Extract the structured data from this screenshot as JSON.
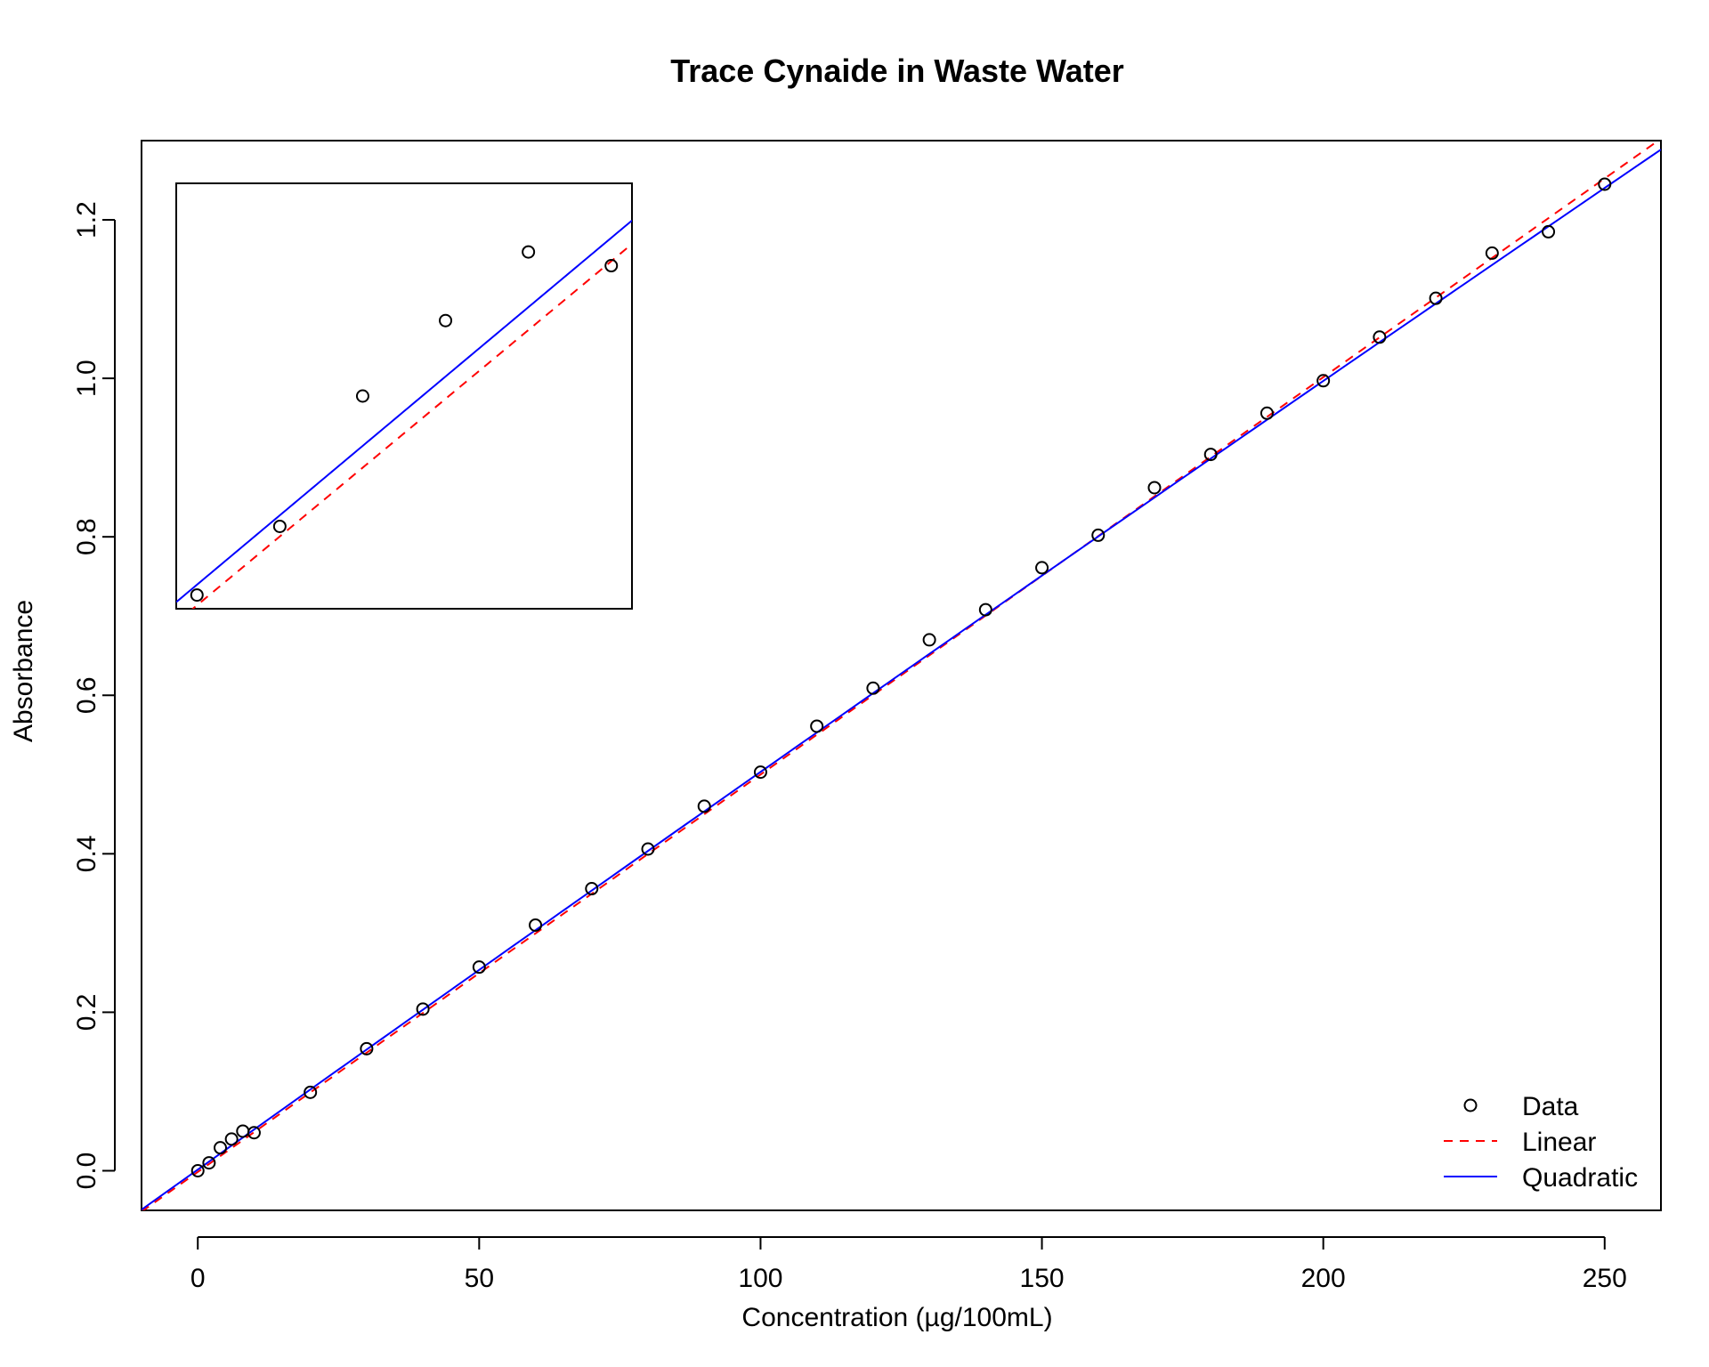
{
  "chart_data": {
    "type": "scatter",
    "title": "Trace Cynaide in Waste Water",
    "xlabel": "Concentration (µg/100mL)",
    "ylabel": "Absorbance",
    "xlim": [
      -10,
      260
    ],
    "ylim": [
      -0.05,
      1.3
    ],
    "x_ticks": [
      0,
      50,
      100,
      150,
      200,
      250
    ],
    "y_ticks": [
      0.0,
      0.2,
      0.4,
      0.6,
      0.8,
      1.0,
      1.2
    ],
    "x_tick_labels": [
      "0",
      "50",
      "100",
      "150",
      "200",
      "250"
    ],
    "y_tick_labels": [
      "0.0",
      "0.2",
      "0.4",
      "0.6",
      "0.8",
      "1.0",
      "1.2"
    ],
    "grid": false,
    "legend_position": "bottom-right",
    "series": [
      {
        "name": "Data",
        "style": "points",
        "marker": "open-circle",
        "color": "#000000",
        "points": [
          [
            0,
            0.0
          ],
          [
            2,
            0.01
          ],
          [
            4,
            0.029
          ],
          [
            6,
            0.04
          ],
          [
            8,
            0.05
          ],
          [
            10,
            0.048
          ],
          [
            20,
            0.099
          ],
          [
            30,
            0.154
          ],
          [
            40,
            0.204
          ],
          [
            50,
            0.257
          ],
          [
            60,
            0.31
          ],
          [
            70,
            0.356
          ],
          [
            80,
            0.406
          ],
          [
            90,
            0.46
          ],
          [
            100,
            0.503
          ],
          [
            110,
            0.561
          ],
          [
            120,
            0.609
          ],
          [
            130,
            0.67
          ],
          [
            140,
            0.708
          ],
          [
            150,
            0.761
          ],
          [
            160,
            0.802
          ],
          [
            170,
            0.862
          ],
          [
            180,
            0.904
          ],
          [
            190,
            0.956
          ],
          [
            200,
            0.997
          ],
          [
            210,
            1.052
          ],
          [
            220,
            1.101
          ],
          [
            230,
            1.158
          ],
          [
            240,
            1.185
          ],
          [
            250,
            1.245
          ]
        ]
      },
      {
        "name": "Linear",
        "style": "dashed",
        "color": "#ff0000",
        "intercept": -0.0015,
        "slope": 0.005015,
        "quadratic": 0
      },
      {
        "name": "Quadratic",
        "style": "solid",
        "color": "#0000ff",
        "intercept": 0.0015,
        "slope": 0.00506,
        "quadratic": -4.2e-07
      }
    ],
    "inset": {
      "xlim": [
        -0.5,
        10.5
      ],
      "ylim": [
        -0.002,
        0.06
      ],
      "show_axes": false
    }
  }
}
